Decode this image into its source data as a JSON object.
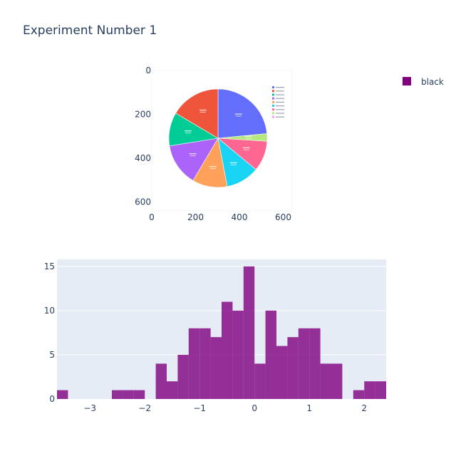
{
  "title": "Experiment Number 1",
  "legend": {
    "entries": [
      {
        "label": "black",
        "color": "#800080"
      }
    ]
  },
  "colors": {
    "plot_bg": "#e5ecf6",
    "grid": "#ffffff",
    "histogram": "#800080"
  },
  "chart_data": [
    {
      "type": "image",
      "description": "Embedded image of a pie chart plotted on pixel axes",
      "x_ticks": [
        "0",
        "200",
        "400",
        "600"
      ],
      "y_ticks": [
        "0",
        "200",
        "400",
        "600"
      ],
      "xlim": [
        0,
        640
      ],
      "ylim": [
        640,
        0
      ],
      "embedded_pie": {
        "slice_colors": [
          "#636efa",
          "#b6e880",
          "#ff6692",
          "#19d3f3",
          "#ffa15a",
          "#ab63fa",
          "#00cc96",
          "#ef553b"
        ],
        "legend_colors": [
          "#636efa",
          "#ef553b",
          "#00cc96",
          "#ab63fa",
          "#ffa15a",
          "#19d3f3",
          "#ff6692",
          "#b6e880",
          "#ff97ff"
        ],
        "fractions": [
          0.235,
          0.025,
          0.1,
          0.11,
          0.115,
          0.14,
          0.11,
          0.165
        ]
      }
    },
    {
      "type": "histogram",
      "color": "#800080",
      "bin_width": 0.2,
      "bin_start": -3.6,
      "counts": [
        1,
        0,
        0,
        0,
        0,
        1,
        1,
        1,
        0,
        4,
        2,
        5,
        8,
        8,
        7,
        11,
        10,
        15,
        4,
        10,
        6,
        7,
        8,
        8,
        4,
        4,
        0,
        1,
        2,
        2
      ],
      "x_ticks": [
        "−3",
        "−2",
        "−1",
        "0",
        "1",
        "2"
      ],
      "x_tick_values": [
        -3,
        -2,
        -1,
        0,
        1,
        2
      ],
      "y_ticks": [
        "0",
        "5",
        "10",
        "15"
      ],
      "y_tick_values": [
        0,
        5,
        10,
        15
      ],
      "xlim": [
        -3.6,
        2.4
      ],
      "ylim": [
        0,
        15.8
      ],
      "legend_name": "black"
    }
  ]
}
